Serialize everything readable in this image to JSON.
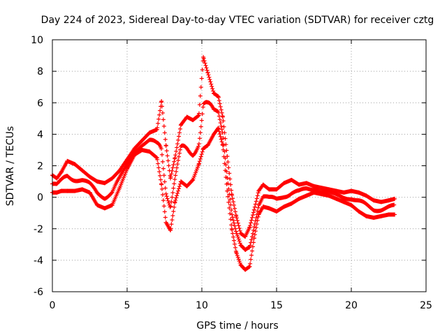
{
  "chart_data": {
    "type": "scatter",
    "title": "Day 224 of 2023, Sidereal Day-to-day VTEC variation (SDTVAR) for receiver cztg",
    "xlabel": "GPS time / hours",
    "ylabel": "SDTVAR / TECUs",
    "xlim": [
      0,
      25
    ],
    "ylim": [
      -6,
      10
    ],
    "xticks": [
      0,
      5,
      10,
      15,
      20,
      25
    ],
    "yticks": [
      -6,
      -4,
      -2,
      0,
      2,
      4,
      6,
      8,
      10
    ],
    "grid": true,
    "marker": "+",
    "color": "#ff0000",
    "series": [
      {
        "name": "upper envelope",
        "x": [
          0.0,
          0.3,
          0.6,
          1.0,
          1.5,
          2.0,
          2.5,
          3.0,
          3.5,
          4.0,
          4.5,
          5.0,
          5.5,
          6.0,
          6.5,
          7.0,
          7.3,
          7.6,
          7.9,
          8.2,
          8.6,
          9.0,
          9.4,
          9.8,
          10.1,
          10.4,
          10.8,
          11.1,
          11.4,
          11.7,
          12.0,
          12.3,
          12.6,
          12.9,
          13.2,
          13.5,
          13.8,
          14.1,
          14.5,
          15.0,
          15.5,
          16.0,
          16.5,
          17.0,
          17.5,
          18.0,
          18.5,
          19.0,
          19.5,
          20.0,
          20.5,
          21.0,
          21.5,
          22.0,
          22.5,
          22.9
        ],
        "y": [
          1.4,
          1.2,
          1.6,
          2.3,
          2.1,
          1.7,
          1.3,
          1.0,
          0.9,
          1.2,
          1.7,
          2.4,
          3.1,
          3.6,
          4.1,
          4.3,
          6.1,
          3.3,
          1.2,
          2.5,
          4.6,
          5.1,
          4.9,
          5.2,
          8.9,
          7.9,
          6.6,
          6.4,
          5.1,
          2.6,
          0.2,
          -1.2,
          -2.3,
          -2.5,
          -1.9,
          -0.8,
          0.4,
          0.8,
          0.5,
          0.5,
          0.9,
          1.1,
          0.8,
          0.9,
          0.7,
          0.6,
          0.5,
          0.4,
          0.3,
          0.4,
          0.3,
          0.1,
          -0.2,
          -0.3,
          -0.2,
          -0.1
        ]
      },
      {
        "name": "lower envelope",
        "x": [
          0.0,
          0.3,
          0.6,
          1.0,
          1.5,
          2.0,
          2.5,
          3.0,
          3.5,
          4.0,
          4.5,
          5.0,
          5.5,
          6.0,
          6.5,
          7.0,
          7.3,
          7.6,
          7.9,
          8.2,
          8.6,
          9.0,
          9.4,
          9.8,
          10.1,
          10.4,
          10.8,
          11.1,
          11.4,
          11.7,
          12.0,
          12.3,
          12.6,
          12.9,
          13.2,
          13.5,
          13.8,
          14.1,
          14.5,
          15.0,
          15.5,
          16.0,
          16.5,
          17.0,
          17.5,
          18.0,
          18.5,
          19.0,
          19.5,
          20.0,
          20.5,
          21.0,
          21.5,
          22.0,
          22.5,
          22.9
        ],
        "y": [
          0.3,
          0.3,
          0.4,
          0.4,
          0.4,
          0.5,
          0.3,
          -0.5,
          -0.7,
          -0.5,
          0.6,
          1.8,
          2.7,
          3.0,
          2.9,
          2.5,
          0.8,
          -1.6,
          -2.1,
          -0.3,
          1.0,
          0.7,
          1.1,
          2.1,
          3.1,
          3.3,
          4.0,
          4.4,
          3.3,
          0.4,
          -2.0,
          -3.5,
          -4.3,
          -4.6,
          -4.4,
          -2.6,
          -1.1,
          -0.6,
          -0.7,
          -0.9,
          -0.6,
          -0.4,
          -0.1,
          0.1,
          0.3,
          0.2,
          0.1,
          -0.1,
          -0.3,
          -0.5,
          -0.9,
          -1.2,
          -1.3,
          -1.2,
          -1.1,
          -1.1
        ]
      }
    ]
  }
}
